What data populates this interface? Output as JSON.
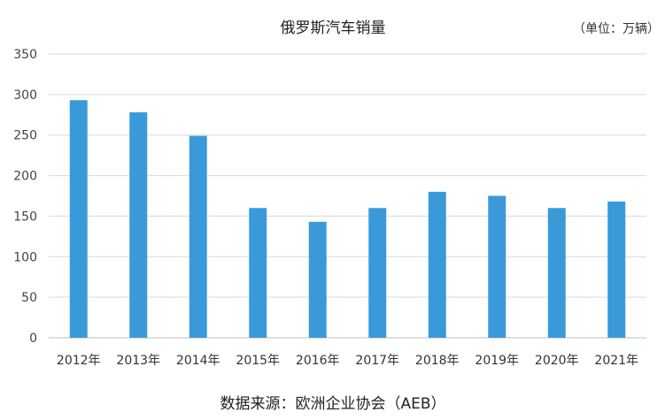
{
  "chart_data": {
    "type": "bar",
    "title": "俄罗斯汽车销量",
    "unit_note": "（单位：万辆）",
    "source": "数据来源：欧洲企业协会（AEB）",
    "categories": [
      "2012年",
      "2013年",
      "2014年",
      "2015年",
      "2016年",
      "2017年",
      "2018年",
      "2019年",
      "2020年",
      "2021年"
    ],
    "values": [
      293,
      278,
      249,
      160,
      143,
      160,
      180,
      175,
      160,
      168
    ],
    "ylim": [
      0,
      350
    ],
    "yticks": [
      "0",
      "50",
      "100",
      "150",
      "200",
      "250",
      "300",
      "350"
    ],
    "grid": true,
    "bar_color": "#3a9ad9"
  }
}
